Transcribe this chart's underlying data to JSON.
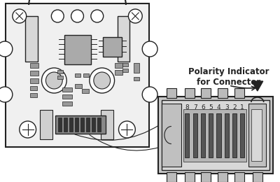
{
  "bg_color": "#ffffff",
  "pcb_fill": "#f0f0f0",
  "pcb_edge": "#222222",
  "comp_fill": "#888888",
  "comp_edge": "#222222",
  "pin_fill": "#555555",
  "conn_fill": "#cccccc",
  "conn_edge": "#222222",
  "title_line1": "Polarity Indicator",
  "title_line2": "for Connector",
  "title_fontsize": 8.5,
  "title_fontweight": "bold",
  "pin_labels": [
    "8",
    "7",
    "6",
    "5",
    "4",
    "3",
    "2",
    "1"
  ],
  "pin_label_fontsize": 6.5
}
